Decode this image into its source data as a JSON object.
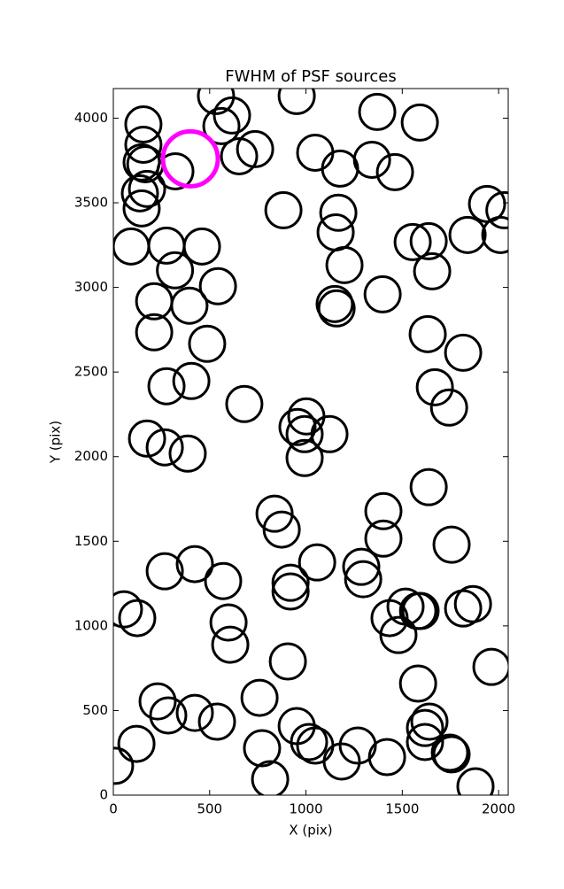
{
  "chart_data": {
    "type": "scatter",
    "title": "FWHM of PSF sources",
    "x_label": "X (pix)",
    "y_label": "Y (pix)",
    "xlim": [
      0,
      2050
    ],
    "ylim": [
      0,
      4175
    ],
    "xticks": [
      0,
      500,
      1000,
      1500,
      2000
    ],
    "yticks": [
      0,
      500,
      1000,
      1500,
      2000,
      2500,
      3000,
      3500,
      4000
    ],
    "series": [
      {
        "color": "#000000",
        "marker_radius": 20,
        "line_width": 3,
        "x": [
          9,
          55,
          124,
          120,
          230,
          285,
          423,
          538,
          607,
          598,
          570,
          423,
          267,
          759,
          772,
          814,
          906,
          920,
          920,
          874,
          837,
          1058,
          952,
          1016,
          1048,
          1186,
          1269,
          1421,
          1297,
          1287,
          1434,
          1480,
          1517,
          1582,
          1595,
          1402,
          1402,
          1637,
          1756,
          1582,
          1618,
          1618,
          1641,
          1747,
          1756,
          1880,
          1963,
          1816,
          1867,
          1743,
          1669,
          1816,
          1632,
          1398,
          1159,
          1149,
          1200,
          1154,
          1168,
          883,
          1554,
          1655,
          1839,
          1940,
          2009,
          2030,
          1637,
          1591,
          1370,
          1343,
          1462,
          1177,
          1048,
          952,
          533,
          561,
          616,
          736,
          653,
          322,
          156,
          156,
          147,
          166,
          175,
          138,
          147,
          92,
          276,
          460,
          320,
          543,
          212,
          395,
          212,
          487,
          276,
          405,
          175,
          267,
          386,
          680,
          956,
          1002,
          993,
          1122,
          993
        ],
        "y": [
          173,
          1098,
          1046,
          303,
          554,
          471,
          486,
          434,
          889,
          1020,
          1265,
          1365,
          1323,
          575,
          277,
          94,
          790,
          1203,
          1255,
          1569,
          1663,
          1375,
          408,
          314,
          293,
          199,
          293,
          225,
          1276,
          1349,
          1046,
          946,
          1114,
          1088,
          1088,
          1516,
          1678,
          1820,
          1480,
          659,
          314,
          397,
          434,
          251,
          241,
          52,
          758,
          1103,
          1129,
          2290,
          2410,
          2614,
          2724,
          2959,
          2876,
          2902,
          3132,
          3325,
          3441,
          3456,
          3268,
          3095,
          3310,
          3493,
          3310,
          3456,
          3273,
          3974,
          4037,
          3754,
          3681,
          3702,
          3796,
          4131,
          4131,
          3953,
          4016,
          3817,
          3775,
          3686,
          3963,
          3843,
          3739,
          3728,
          3582,
          3556,
          3467,
          3242,
          3247,
          3242,
          3101,
          3007,
          2918,
          2892,
          2735,
          2667,
          2416,
          2447,
          2107,
          2055,
          2018,
          2311,
          2175,
          2238,
          2133,
          2133,
          1992
        ]
      },
      {
        "color": "#ff00ff",
        "marker_radius": 31,
        "line_width": 5,
        "x": [
          400
        ],
        "y": [
          3760
        ]
      }
    ]
  }
}
